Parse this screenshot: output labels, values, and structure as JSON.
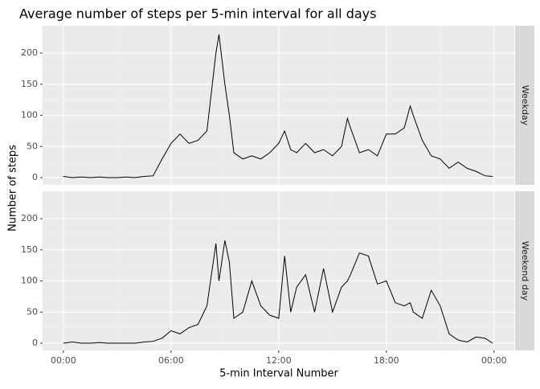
{
  "chart_data": {
    "type": "line",
    "title": "Average number of steps per 5-min interval for all days",
    "x_label": "5-min Interval Number",
    "y_label": "Number of steps",
    "x": [
      0,
      0.5,
      1,
      1.5,
      2,
      2.5,
      3,
      3.5,
      4,
      4.5,
      5,
      5.5,
      6,
      6.5,
      7,
      7.5,
      8,
      8.5,
      8.67,
      9,
      9.25,
      9.5,
      10,
      10.5,
      11,
      11.5,
      12,
      12.33,
      12.67,
      13,
      13.5,
      14,
      14.5,
      15,
      15.5,
      15.83,
      16,
      16.5,
      17,
      17.5,
      18,
      18.5,
      19,
      19.33,
      19.5,
      20,
      20.5,
      21,
      21.5,
      22,
      22.5,
      23,
      23.5,
      23.92
    ],
    "xlim": [
      -1.16,
      25.13
    ],
    "xticks": [
      {
        "value": 0,
        "label": "00:00"
      },
      {
        "value": 6,
        "label": "06:00"
      },
      {
        "value": 12,
        "label": "12:00"
      },
      {
        "value": 18,
        "label": "18:00"
      },
      {
        "value": 24,
        "label": "00:00"
      }
    ],
    "ylim": [
      -11.6,
      244
    ],
    "yticks": [
      0,
      50,
      100,
      150,
      200
    ],
    "grid": true,
    "panels": [
      {
        "strip": "Weekday",
        "color": "#000000",
        "values": [
          2,
          0,
          1,
          0,
          1,
          0,
          0,
          1,
          0,
          2,
          3,
          30,
          55,
          70,
          55,
          60,
          75,
          200,
          230,
          150,
          100,
          40,
          30,
          35,
          30,
          40,
          55,
          75,
          45,
          40,
          55,
          40,
          45,
          35,
          50,
          95,
          80,
          40,
          45,
          35,
          70,
          70,
          80,
          115,
          100,
          60,
          35,
          30,
          15,
          25,
          15,
          10,
          3,
          2
        ]
      },
      {
        "strip": "Weekend day",
        "color": "#000000",
        "values": [
          0,
          2,
          0,
          0,
          1,
          0,
          0,
          0,
          0,
          2,
          3,
          8,
          20,
          15,
          25,
          30,
          60,
          160,
          100,
          165,
          130,
          40,
          50,
          100,
          60,
          45,
          40,
          140,
          50,
          90,
          110,
          50,
          120,
          50,
          90,
          100,
          110,
          145,
          140,
          95,
          100,
          65,
          60,
          65,
          50,
          40,
          85,
          60,
          15,
          5,
          2,
          10,
          8,
          0
        ]
      }
    ]
  }
}
